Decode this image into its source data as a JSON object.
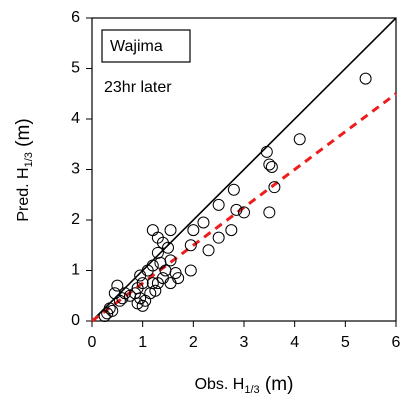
{
  "chart_data": {
    "type": "scatter",
    "annotations": [
      "Wajima",
      "23hr later"
    ],
    "xlabel": [
      "Obs. H",
      "1/3",
      " (m)"
    ],
    "ylabel": [
      "Pred. H",
      "1/3",
      " (m)"
    ],
    "xlim": [
      0,
      6
    ],
    "ylim": [
      0,
      6
    ],
    "xticks": [
      0,
      1,
      2,
      3,
      4,
      5,
      6
    ],
    "yticks": [
      0,
      1,
      2,
      3,
      4,
      5,
      6
    ],
    "x": [
      5.4,
      4.1,
      3.45,
      3.5,
      3.55,
      3.6,
      3.5,
      2.8,
      2.85,
      3.0,
      2.75,
      2.5,
      2.5,
      2.3,
      2.2,
      2.0,
      1.95,
      1.95,
      1.55,
      1.2,
      1.3,
      1.4,
      1.5,
      1.55,
      1.3,
      1.35,
      1.2,
      1.1,
      1.45,
      1.65,
      1.7,
      1.4,
      1.3,
      1.55,
      1.25,
      1.2,
      1.0,
      0.95,
      0.9,
      0.85,
      0.95,
      1.05,
      1.0,
      0.9,
      0.75,
      0.6,
      0.55,
      0.5,
      0.45,
      0.35,
      0.3,
      0.25,
      0.4,
      0.65,
      1.15
    ],
    "values": [
      4.8,
      3.6,
      3.35,
      3.1,
      3.05,
      2.65,
      2.15,
      2.6,
      2.2,
      2.15,
      1.8,
      2.3,
      1.65,
      1.4,
      1.95,
      1.8,
      1.5,
      1.0,
      1.8,
      1.8,
      1.65,
      1.55,
      1.45,
      1.2,
      1.35,
      1.15,
      1.1,
      1.0,
      1.0,
      0.95,
      0.85,
      0.85,
      0.75,
      0.75,
      0.6,
      0.75,
      0.75,
      0.9,
      0.65,
      0.55,
      0.45,
      0.4,
      0.3,
      0.35,
      0.5,
      0.45,
      0.4,
      0.7,
      0.55,
      0.25,
      0.15,
      0.1,
      0.2,
      0.55,
      0.55
    ],
    "color": "#000000",
    "lines": [
      {
        "color": "#000000",
        "dashed": false,
        "x": [
          0,
          6
        ],
        "values": [
          0,
          6
        ]
      },
      {
        "color": "#ee1c1c",
        "dashed": true,
        "x": [
          0,
          6
        ],
        "values": [
          0,
          4.5
        ]
      }
    ]
  }
}
